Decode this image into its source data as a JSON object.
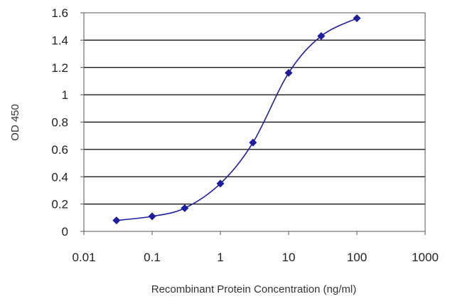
{
  "chart_data": {
    "type": "scatter",
    "xlabel": "Recombinant Protein Concentration  (ng/ml)",
    "ylabel": "OD 450",
    "xscale": "log",
    "xlim": [
      0.01,
      1000
    ],
    "ylim": [
      0,
      1.6
    ],
    "xticks": [
      "0.01",
      "0.1",
      "1",
      "10",
      "100",
      "1000"
    ],
    "yticks": [
      "0",
      "0.2",
      "0.4",
      "0.6",
      "0.8",
      "1",
      "1.2",
      "1.4",
      "1.6"
    ],
    "grid": "horizontal",
    "colors": {
      "series": "#1f1f9e",
      "grid": "#000000",
      "background": "#ffffff"
    },
    "series": [
      {
        "x": [
          0.03,
          0.1,
          0.3,
          1,
          3,
          10,
          30,
          100
        ],
        "y": [
          0.08,
          0.11,
          0.17,
          0.35,
          0.65,
          1.16,
          1.43,
          1.56
        ]
      }
    ]
  }
}
